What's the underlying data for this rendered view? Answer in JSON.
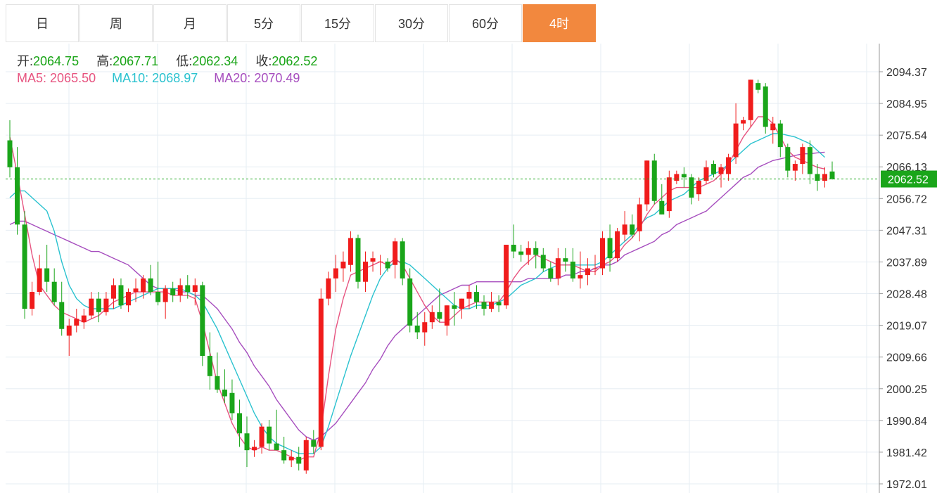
{
  "tabs": [
    {
      "label": "日"
    },
    {
      "label": "周"
    },
    {
      "label": "月"
    },
    {
      "label": "5分"
    },
    {
      "label": "15分"
    },
    {
      "label": "30分"
    },
    {
      "label": "60分"
    },
    {
      "label": "4时"
    }
  ],
  "active_tab": "4时",
  "ohlc": {
    "open_label": "开:",
    "open": "2064.75",
    "high_label": "高:",
    "high": "2067.71",
    "low_label": "低:",
    "low": "2062.34",
    "close_label": "收:",
    "close": "2062.52"
  },
  "ma": {
    "ma5_label": "MA5:",
    "ma5": "2065.50",
    "ma10_label": "MA10:",
    "ma10": "2068.97",
    "ma20_label": "MA20:",
    "ma20": "2070.49"
  },
  "colors": {
    "up": "#f01c1c",
    "down": "#1aa51a",
    "ma5": "#e75480",
    "ma10": "#2ac2cf",
    "ma20": "#a64dbe",
    "active_tab": "#f2883e",
    "last_price": "#1aa51a"
  },
  "chart_data": {
    "type": "candlestick",
    "y_ticks": [
      "2094.37",
      "2084.95",
      "2075.54",
      "2066.13",
      "2056.72",
      "2047.31",
      "2037.89",
      "2028.48",
      "2019.07",
      "2009.66",
      "2000.25",
      "1990.84",
      "1981.42",
      "1972.01"
    ],
    "ylim": [
      1972.01,
      2094.37
    ],
    "last_price": "2062.52",
    "grid": true,
    "candles": [
      [
        2074,
        2080,
        2063,
        2066
      ],
      [
        2066,
        2072,
        2046,
        2049
      ],
      [
        2049,
        2053,
        2021,
        2024
      ],
      [
        2024,
        2032,
        2022,
        2029
      ],
      [
        2029,
        2040,
        2028,
        2036
      ],
      [
        2036,
        2043,
        2029,
        2032
      ],
      [
        2032,
        2036,
        2025,
        2026
      ],
      [
        2026,
        2032,
        2016,
        2018
      ],
      [
        2016,
        2021,
        2010,
        2019
      ],
      [
        2019,
        2024,
        2017,
        2021
      ],
      [
        2020,
        2024,
        2018,
        2022
      ],
      [
        2022,
        2029,
        2021,
        2027
      ],
      [
        2027,
        2029,
        2020,
        2023
      ],
      [
        2023,
        2029,
        2022,
        2027
      ],
      [
        2027,
        2033,
        2024,
        2031
      ],
      [
        2031,
        2033,
        2024,
        2025
      ],
      [
        2025,
        2030,
        2023,
        2029
      ],
      [
        2029,
        2033,
        2026,
        2030
      ],
      [
        2029,
        2034,
        2027,
        2033
      ],
      [
        2033,
        2037,
        2028,
        2029
      ],
      [
        2029,
        2038,
        2025,
        2026
      ],
      [
        2026,
        2031,
        2021,
        2030
      ],
      [
        2030,
        2032,
        2026,
        2028
      ],
      [
        2028,
        2033,
        2026,
        2031
      ],
      [
        2031,
        2034,
        2027,
        2029
      ],
      [
        2029,
        2033,
        2025,
        2031
      ],
      [
        2031,
        2032,
        2007,
        2010
      ],
      [
        2010,
        2017,
        2000,
        2004
      ],
      [
        2004,
        2011,
        1999,
        2000
      ],
      [
        2000,
        2006,
        1996,
        1998
      ],
      [
        1999,
        2003,
        1991,
        1993
      ],
      [
        1993,
        1997,
        1983,
        1987
      ],
      [
        1987,
        1992,
        1977,
        1982
      ],
      [
        1982,
        1985,
        1980,
        1983
      ],
      [
        1983,
        1990,
        1981,
        1989
      ],
      [
        1989,
        1991,
        1982,
        1984
      ],
      [
        1984,
        1994,
        1982,
        1982
      ],
      [
        1982,
        1986,
        1978,
        1979
      ],
      [
        1979,
        1982,
        1977,
        1980
      ],
      [
        1980,
        1983,
        1976,
        1978
      ],
      [
        1976,
        1986,
        1975,
        1985
      ],
      [
        1985,
        1988,
        1981,
        1983
      ],
      [
        1983,
        2030,
        1982,
        2027
      ],
      [
        2027,
        2035,
        2025,
        2033
      ],
      [
        2033,
        2040,
        2029,
        2036
      ],
      [
        2036,
        2041,
        2032,
        2038
      ],
      [
        2037,
        2047,
        2035,
        2045
      ],
      [
        2045,
        2046,
        2030,
        2032
      ],
      [
        2032,
        2041,
        2029,
        2038
      ],
      [
        2038,
        2041,
        2035,
        2039
      ],
      [
        2038,
        2040,
        2034,
        2038
      ],
      [
        2038,
        2039,
        2035,
        2036
      ],
      [
        2037,
        2045,
        2033,
        2044
      ],
      [
        2044,
        2045,
        2031,
        2033
      ],
      [
        2033,
        2036,
        2017,
        2019
      ],
      [
        2019,
        2023,
        2015,
        2017
      ],
      [
        2017,
        2023,
        2013,
        2020
      ],
      [
        2020,
        2025,
        2018,
        2023
      ],
      [
        2023,
        2030,
        2020,
        2021
      ],
      [
        2019,
        2025,
        2016,
        2025
      ],
      [
        2025,
        2029,
        2019,
        2024
      ],
      [
        2024,
        2027,
        2021,
        2027
      ],
      [
        2027,
        2031,
        2024,
        2029
      ],
      [
        2029,
        2031,
        2024,
        2026
      ],
      [
        2026,
        2028,
        2022,
        2024
      ],
      [
        2024,
        2029,
        2023,
        2026
      ],
      [
        2026,
        2028,
        2023,
        2025
      ],
      [
        2025,
        2043,
        2024,
        2043
      ],
      [
        2043,
        2049,
        2039,
        2041
      ],
      [
        2041,
        2043,
        2038,
        2040
      ],
      [
        2040,
        2044,
        2037,
        2042
      ],
      [
        2042,
        2044,
        2036,
        2040
      ],
      [
        2040,
        2042,
        2035,
        2036
      ],
      [
        2036,
        2038,
        2032,
        2033
      ],
      [
        2033,
        2042,
        2031,
        2039
      ],
      [
        2039,
        2042,
        2035,
        2038
      ],
      [
        2038,
        2042,
        2032,
        2033
      ],
      [
        2033,
        2041,
        2030,
        2034
      ],
      [
        2034,
        2039,
        2031,
        2036
      ],
      [
        2036,
        2040,
        2034,
        2036
      ],
      [
        2036,
        2047,
        2034,
        2045
      ],
      [
        2045,
        2049,
        2035,
        2039
      ],
      [
        2039,
        2048,
        2038,
        2047
      ],
      [
        2046,
        2053,
        2044,
        2049
      ],
      [
        2049,
        2052,
        2045,
        2046
      ],
      [
        2047,
        2057,
        2044,
        2055
      ],
      [
        2055,
        2068,
        2053,
        2068
      ],
      [
        2068,
        2070,
        2055,
        2056
      ],
      [
        2056,
        2061,
        2052,
        2052
      ],
      [
        2053,
        2065,
        2051,
        2063
      ],
      [
        2062,
        2065,
        2061,
        2064
      ],
      [
        2064,
        2066,
        2060,
        2063
      ],
      [
        2063,
        2064,
        2055,
        2057
      ],
      [
        2058,
        2063,
        2056,
        2062
      ],
      [
        2062,
        2068,
        2061,
        2066
      ],
      [
        2067,
        2068,
        2063,
        2064
      ],
      [
        2064,
        2067,
        2060,
        2066
      ],
      [
        2064,
        2070,
        2062,
        2069
      ],
      [
        2069,
        2085,
        2067,
        2079
      ],
      [
        2079,
        2081,
        2077,
        2080
      ],
      [
        2080,
        2092,
        2078,
        2092
      ],
      [
        2091,
        2092,
        2088,
        2089
      ],
      [
        2090,
        2091,
        2076,
        2078
      ],
      [
        2077,
        2081,
        2073,
        2079
      ],
      [
        2079,
        2080,
        2069,
        2072
      ],
      [
        2072,
        2073,
        2063,
        2065
      ],
      [
        2065,
        2068,
        2062,
        2067
      ],
      [
        2067,
        2073,
        2064,
        2072
      ],
      [
        2072,
        2074,
        2061,
        2064
      ],
      [
        2064,
        2067,
        2059,
        2062
      ],
      [
        2062,
        2066,
        2060,
        2064
      ],
      [
        2064.75,
        2067.71,
        2062.34,
        2062.52
      ]
    ],
    "ma5": [
      2075,
      2064,
      2052,
      2040,
      2031,
      2028,
      2025,
      2023,
      2022,
      2021,
      2020,
      2021,
      2022,
      2024,
      2026,
      2027,
      2028,
      2029,
      2029,
      2029,
      2029,
      2029,
      2028,
      2028,
      2028,
      2027,
      2020,
      2011,
      2002,
      1996,
      1990,
      1986,
      1983,
      1982,
      1983,
      1982,
      1982,
      1981,
      1980,
      1979,
      1980,
      1980,
      1988,
      2004,
      2018,
      2027,
      2034,
      2035,
      2036,
      2037,
      2038,
      2037,
      2039,
      2037,
      2033,
      2029,
      2025,
      2022,
      2020,
      2020,
      2022,
      2024,
      2025,
      2026,
      2026,
      2026,
      2026,
      2029,
      2033,
      2036,
      2038,
      2040,
      2039,
      2038,
      2037,
      2037,
      2037,
      2036,
      2035,
      2035,
      2037,
      2038,
      2040,
      2043,
      2045,
      2048,
      2052,
      2055,
      2057,
      2059,
      2060,
      2060,
      2060,
      2060,
      2061,
      2062,
      2064,
      2067,
      2071,
      2075,
      2078,
      2081,
      2081,
      2079,
      2075,
      2071,
      2069,
      2068,
      2067,
      2066,
      2065.5
    ],
    "ma10": [
      2057,
      2059,
      2059,
      2057,
      2055,
      2053,
      2047,
      2038,
      2031,
      2027,
      2025,
      2024,
      2024,
      2024,
      2024,
      2025,
      2026,
      2027,
      2028,
      2029,
      2030,
      2030,
      2030,
      2030,
      2029,
      2028,
      2026,
      2022,
      2018,
      2013,
      2008,
      2003,
      1998,
      1993,
      1989,
      1986,
      1984,
      1983,
      1982,
      1981,
      1981,
      1981,
      1983,
      1989,
      1996,
      2003,
      2010,
      2016,
      2022,
      2028,
      2033,
      2036,
      2038,
      2038,
      2037,
      2035,
      2033,
      2031,
      2029,
      2027,
      2025,
      2024,
      2024,
      2025,
      2025,
      2025,
      2026,
      2027,
      2029,
      2031,
      2032,
      2033,
      2035,
      2036,
      2037,
      2037,
      2037,
      2037,
      2037,
      2037,
      2038,
      2040,
      2042,
      2044,
      2046,
      2049,
      2051,
      2052,
      2054,
      2056,
      2057,
      2058,
      2060,
      2062,
      2063,
      2064,
      2065,
      2067,
      2069,
      2071,
      2073,
      2074,
      2075,
      2076,
      2076,
      2075.5,
      2075,
      2074,
      2073,
      2071,
      2068.97
    ],
    "ma20": [
      2049,
      2050,
      2050,
      2049,
      2048,
      2047,
      2046,
      2045,
      2044,
      2043,
      2042,
      2041,
      2041,
      2040,
      2039,
      2038,
      2037,
      2035,
      2033,
      2031,
      2030,
      2030,
      2030,
      2029,
      2029,
      2028,
      2028,
      2026,
      2024,
      2021,
      2018,
      2014,
      2011,
      2007,
      2004,
      2001,
      1997,
      1994,
      1991,
      1988,
      1986,
      1985,
      1986,
      1988,
      1990,
      1993,
      1996,
      1999,
      2002,
      2006,
      2009,
      2013,
      2016,
      2018,
      2020,
      2022,
      2024,
      2026,
      2028,
      2029,
      2030,
      2031,
      2031,
      2032,
      2032,
      2032,
      2032,
      2032,
      2032,
      2032,
      2033,
      2033,
      2033,
      2033,
      2033,
      2034,
      2034,
      2035,
      2035,
      2036,
      2037,
      2037,
      2038,
      2040,
      2041,
      2042,
      2043,
      2044,
      2046,
      2047,
      2049,
      2050,
      2051,
      2052,
      2053,
      2055,
      2057,
      2059,
      2061,
      2063,
      2064,
      2066,
      2067,
      2068,
      2068.5,
      2069,
      2069.5,
      2070,
      2070,
      2070.3,
      2070.49
    ]
  }
}
